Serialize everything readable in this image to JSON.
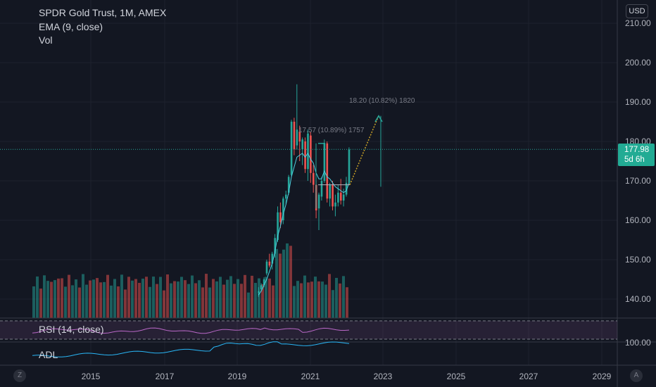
{
  "legend": {
    "symbol": "SPDR Gold Trust, 1M, AMEX",
    "indicator_ema": "EMA (9, close)",
    "indicator_vol": "Vol"
  },
  "currency": "USD",
  "price_axis": {
    "ticks": [
      "210.00",
      "200.00",
      "190.00",
      "180.00",
      "170.00",
      "160.00",
      "150.00",
      "140.00"
    ],
    "rsi_tick": "100.00"
  },
  "last_price": {
    "value": "177.98",
    "countdown": "5d 6h"
  },
  "time_axis": {
    "labels": [
      "2015",
      "2017",
      "2019",
      "2021",
      "2023",
      "2025",
      "2027",
      "2029"
    ]
  },
  "measure_labels": {
    "upper": "18.20 (10.82%) 1820",
    "lower": "17.57 (10.89%) 1757"
  },
  "panes": {
    "rsi": "RSI (14, close)",
    "adl": "ADL"
  },
  "corner_buttons": {
    "left": "Z",
    "right": "A"
  },
  "colors": {
    "background": "#131722",
    "up": "#26a69a",
    "down": "#ef5350",
    "ema": "#4dd0e1",
    "rsi": "#ba68c8",
    "adl": "#29b6f6",
    "projection": "#c9a227"
  },
  "chart_data": {
    "type": "candlestick",
    "price_range": [
      133,
      213
    ],
    "candles": [
      {
        "o": 141.5,
        "h": 143.0,
        "l": 140.5,
        "c": 142.0
      },
      {
        "o": 142.5,
        "h": 144.0,
        "l": 142.0,
        "c": 143.5
      },
      {
        "o": 143.5,
        "h": 145.5,
        "l": 143.0,
        "c": 145.0
      },
      {
        "o": 146.5,
        "h": 150.0,
        "l": 146.0,
        "c": 149.5
      },
      {
        "o": 149.5,
        "h": 151.5,
        "l": 148.0,
        "c": 148.5
      },
      {
        "o": 149.0,
        "h": 152.0,
        "l": 147.5,
        "c": 151.5
      },
      {
        "o": 151.5,
        "h": 156.5,
        "l": 150.5,
        "c": 155.5
      },
      {
        "o": 155.0,
        "h": 163.5,
        "l": 154.5,
        "c": 162.0
      },
      {
        "o": 162.0,
        "h": 164.5,
        "l": 158.0,
        "c": 159.5
      },
      {
        "o": 160.0,
        "h": 166.0,
        "l": 159.0,
        "c": 165.5
      },
      {
        "o": 165.5,
        "h": 167.5,
        "l": 164.0,
        "c": 166.5
      },
      {
        "o": 167.0,
        "h": 171.5,
        "l": 166.5,
        "c": 171.0
      },
      {
        "o": 171.5,
        "h": 185.5,
        "l": 171.0,
        "c": 185.0
      },
      {
        "o": 185.0,
        "h": 186.0,
        "l": 176.5,
        "c": 178.0
      },
      {
        "o": 179.0,
        "h": 194.5,
        "l": 178.0,
        "c": 183.0
      },
      {
        "o": 182.5,
        "h": 184.0,
        "l": 175.0,
        "c": 180.0
      },
      {
        "o": 178.0,
        "h": 181.0,
        "l": 174.0,
        "c": 180.5
      },
      {
        "o": 180.0,
        "h": 181.0,
        "l": 172.0,
        "c": 173.0
      },
      {
        "o": 173.0,
        "h": 183.0,
        "l": 170.0,
        "c": 182.0
      },
      {
        "o": 181.5,
        "h": 182.5,
        "l": 169.5,
        "c": 172.0
      },
      {
        "o": 172.0,
        "h": 174.0,
        "l": 167.0,
        "c": 169.0
      },
      {
        "o": 169.0,
        "h": 170.0,
        "l": 160.5,
        "c": 162.5
      },
      {
        "o": 163.0,
        "h": 167.0,
        "l": 157.5,
        "c": 166.5
      },
      {
        "o": 166.0,
        "h": 171.0,
        "l": 165.0,
        "c": 170.0
      },
      {
        "o": 170.0,
        "h": 180.5,
        "l": 169.5,
        "c": 179.5
      },
      {
        "o": 179.5,
        "h": 180.0,
        "l": 164.5,
        "c": 165.5
      },
      {
        "o": 165.5,
        "h": 169.5,
        "l": 163.5,
        "c": 169.0
      },
      {
        "o": 169.0,
        "h": 170.0,
        "l": 162.5,
        "c": 163.5
      },
      {
        "o": 163.5,
        "h": 166.5,
        "l": 161.0,
        "c": 164.5
      },
      {
        "o": 164.5,
        "h": 169.0,
        "l": 163.5,
        "c": 167.0
      },
      {
        "o": 167.0,
        "h": 170.5,
        "l": 164.0,
        "c": 165.0
      },
      {
        "o": 165.0,
        "h": 168.0,
        "l": 163.5,
        "c": 166.5
      },
      {
        "o": 166.5,
        "h": 171.0,
        "l": 166.0,
        "c": 169.5
      },
      {
        "o": 169.5,
        "h": 178.5,
        "l": 169.0,
        "c": 177.98
      }
    ],
    "ema": [
      141,
      142,
      143.5,
      145,
      147,
      149,
      152,
      156,
      158.5,
      161.5,
      164,
      167,
      171,
      173.5,
      176,
      176.5,
      177,
      176,
      177,
      175.5,
      174.5,
      172,
      170.5,
      170.5,
      172.5,
      171,
      170.5,
      169.5,
      168.5,
      168,
      167.5,
      167,
      167.5,
      169.5
    ]
  }
}
